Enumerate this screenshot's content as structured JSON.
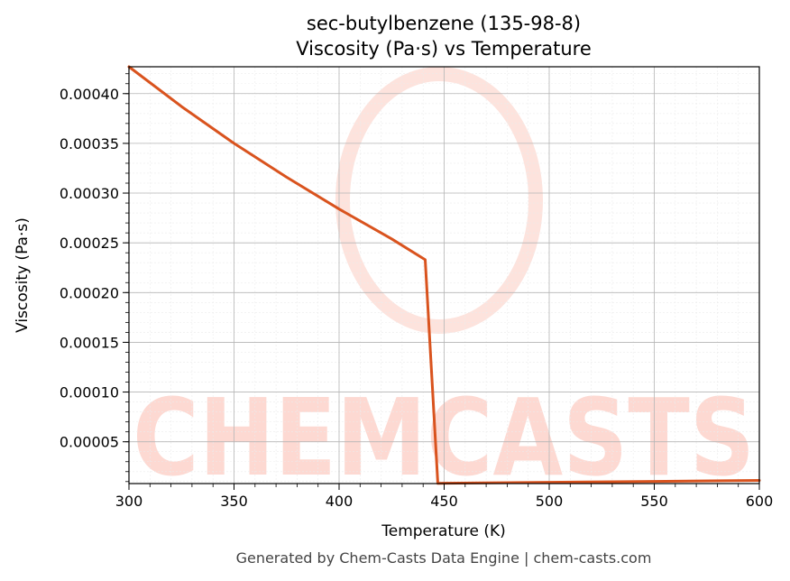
{
  "chart_data": {
    "type": "line",
    "title": "sec-butylbenzene (135-98-8)",
    "subtitle": "Viscosity (Pa·s) vs Temperature",
    "xlabel": "Temperature (K)",
    "ylabel": "Viscosity (Pa·s)",
    "xlim": [
      300,
      600
    ],
    "ylim": [
      8e-06,
      0.000427
    ],
    "xticks": [
      300,
      350,
      400,
      450,
      500,
      550,
      600
    ],
    "yticks": [
      5e-05,
      0.0001,
      0.00015,
      0.0002,
      0.00025,
      0.0003,
      0.00035,
      0.0004
    ],
    "ytick_labels": [
      "0.00005",
      "0.00010",
      "0.00015",
      "0.00020",
      "0.00025",
      "0.00030",
      "0.00035",
      "0.00040"
    ],
    "grid": true,
    "series": [
      {
        "color": "#d9531e",
        "x": [
          300,
          325,
          350,
          375,
          400,
          425,
          441,
          447,
          450,
          500,
          550,
          600
        ],
        "y": [
          0.000427,
          0.000387,
          0.00035,
          0.000316,
          0.000284,
          0.000254,
          0.000233,
          8.2e-06,
          8.4e-06,
          9.3e-06,
          1.02e-05,
          1.12e-05
        ]
      }
    ]
  },
  "watermark": {
    "text": "CHEMCASTS",
    "color": "#fdd9d2"
  },
  "footer": "Generated by Chem-Casts Data Engine | chem-casts.com"
}
